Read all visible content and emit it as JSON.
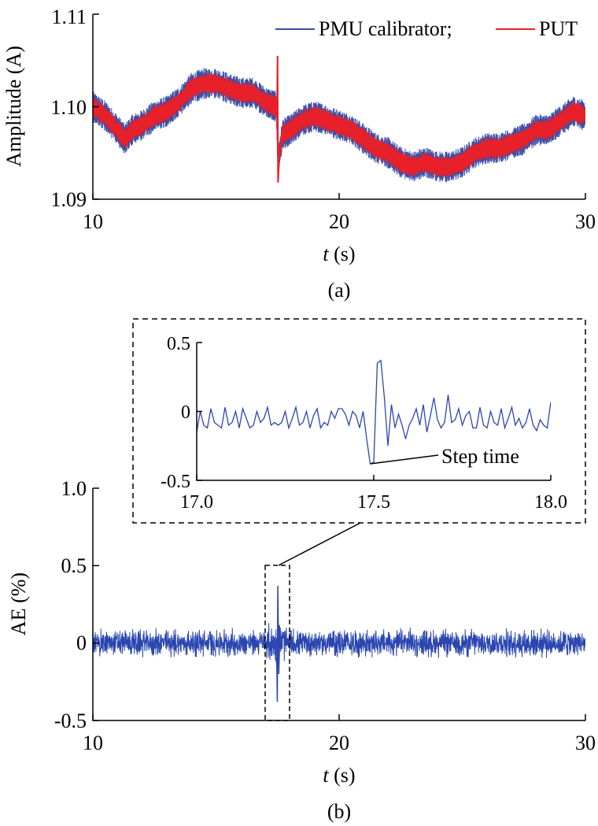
{
  "chart_data": [
    {
      "panel": "(a)",
      "type": "line",
      "xlabel_var": "t",
      "xlabel_unit": "(s)",
      "ylabel": "Amplitude (A)",
      "xlim": [
        10,
        30
      ],
      "ylim": [
        1.09,
        1.11
      ],
      "xticks": [
        "10",
        "20",
        "30"
      ],
      "yticks": [
        "1.09",
        "1.10",
        "1.11"
      ],
      "legend": {
        "placement": "top-right",
        "separator": ";"
      },
      "series": [
        {
          "name": "PMU calibrator",
          "color": "#3a4fa8",
          "band": 1.2,
          "x": [
            10.0,
            10.5,
            11.0,
            11.3,
            11.6,
            12.0,
            12.5,
            13.0,
            13.5,
            14.0,
            14.5,
            15.0,
            15.5,
            16.0,
            16.5,
            17.0,
            17.45,
            17.5,
            17.55,
            17.7,
            18.0,
            18.5,
            19.0,
            19.5,
            20.0,
            20.5,
            21.0,
            21.5,
            22.0,
            22.5,
            23.0,
            23.5,
            24.0,
            24.5,
            25.0,
            25.5,
            26.0,
            26.5,
            27.0,
            27.5,
            28.0,
            28.5,
            29.0,
            29.5,
            30.0
          ],
          "values": [
            1.1,
            1.099,
            1.0975,
            1.0965,
            1.0975,
            1.098,
            1.099,
            1.0995,
            1.1005,
            1.102,
            1.1025,
            1.1025,
            1.102,
            1.1015,
            1.1015,
            1.1005,
            1.1,
            1.0955,
            1.0945,
            1.097,
            1.0975,
            1.0985,
            1.099,
            1.0985,
            1.098,
            1.0975,
            1.0965,
            1.0955,
            1.095,
            1.094,
            1.0935,
            1.094,
            1.0935,
            1.0935,
            1.094,
            1.095,
            1.0955,
            1.0955,
            1.096,
            1.0965,
            1.0975,
            1.0975,
            1.0985,
            1.0995,
            1.099
          ]
        },
        {
          "name": "PUT",
          "color": "#e8202a",
          "band": 0.8,
          "x": [
            10.0,
            10.5,
            11.0,
            11.3,
            11.6,
            12.0,
            12.5,
            13.0,
            13.5,
            14.0,
            14.5,
            15.0,
            15.5,
            16.0,
            16.5,
            17.0,
            17.45,
            17.5,
            17.55,
            17.7,
            18.0,
            18.5,
            19.0,
            19.5,
            20.0,
            20.5,
            21.0,
            21.5,
            22.0,
            22.5,
            23.0,
            23.5,
            24.0,
            24.5,
            25.0,
            25.5,
            26.0,
            26.5,
            27.0,
            27.5,
            28.0,
            28.5,
            29.0,
            29.5,
            30.0
          ],
          "values": [
            1.1,
            1.099,
            1.0975,
            1.0965,
            1.0975,
            1.098,
            1.099,
            1.0995,
            1.1005,
            1.102,
            1.1025,
            1.1025,
            1.102,
            1.1015,
            1.1015,
            1.1005,
            1.1,
            1.0955,
            1.0945,
            1.097,
            1.0975,
            1.0985,
            1.099,
            1.0985,
            1.098,
            1.0975,
            1.0965,
            1.0955,
            1.095,
            1.094,
            1.0935,
            1.094,
            1.0935,
            1.0935,
            1.094,
            1.095,
            1.0955,
            1.0955,
            1.096,
            1.0965,
            1.0975,
            1.0975,
            1.0985,
            1.0995,
            1.099
          ]
        }
      ],
      "step": {
        "x": 17.5,
        "peak": 1.1055,
        "trough": 1.0918
      }
    },
    {
      "panel": "(b)",
      "type": "line",
      "xlabel_var": "t",
      "xlabel_unit": "(s)",
      "ylabel": "AE (%)",
      "xlim": [
        10,
        30
      ],
      "ylim": [
        -0.5,
        1.0
      ],
      "xticks": [
        "10",
        "20",
        "30"
      ],
      "yticks": [
        "-0.5",
        "0",
        "0.5",
        "1.0"
      ],
      "series": [
        {
          "color": "#2b46b0",
          "noise_amplitude": 0.08,
          "spike": {
            "x": 17.5,
            "max": 0.37,
            "min": -0.38
          }
        }
      ],
      "highlight_box": {
        "x": [
          17.2,
          18.2
        ],
        "y": [
          -0.5,
          0.5
        ]
      }
    },
    {
      "panel": "inset",
      "type": "line",
      "xlim": [
        17.0,
        18.0
      ],
      "ylim": [
        -0.5,
        0.5
      ],
      "xticks": [
        "17.0",
        "17.5",
        "18.0"
      ],
      "yticks": [
        "-0.5",
        "0",
        "0.5"
      ],
      "annotation": {
        "text": "Step time",
        "x": 17.49,
        "y": -0.38
      },
      "series": [
        {
          "color": "#2b46b0",
          "x": [
            17.0,
            17.01,
            17.02,
            17.03,
            17.04,
            17.05,
            17.06,
            17.07,
            17.08,
            17.09,
            17.1,
            17.11,
            17.12,
            17.13,
            17.14,
            17.15,
            17.16,
            17.17,
            17.18,
            17.19,
            17.2,
            17.21,
            17.22,
            17.23,
            17.24,
            17.25,
            17.26,
            17.27,
            17.28,
            17.29,
            17.3,
            17.31,
            17.32,
            17.33,
            17.34,
            17.35,
            17.36,
            17.37,
            17.38,
            17.39,
            17.4,
            17.41,
            17.42,
            17.43,
            17.44,
            17.45,
            17.46,
            17.47,
            17.48,
            17.49,
            17.5,
            17.51,
            17.52,
            17.53,
            17.54,
            17.55,
            17.56,
            17.57,
            17.58,
            17.59,
            17.6,
            17.61,
            17.62,
            17.63,
            17.64,
            17.65,
            17.66,
            17.67,
            17.68,
            17.69,
            17.7,
            17.71,
            17.72,
            17.73,
            17.74,
            17.75,
            17.76,
            17.77,
            17.78,
            17.79,
            17.8,
            17.81,
            17.82,
            17.83,
            17.84,
            17.85,
            17.86,
            17.87,
            17.88,
            17.89,
            17.9,
            17.91,
            17.92,
            17.93,
            17.94,
            17.95,
            17.96,
            17.97,
            17.98,
            17.99,
            18.0
          ],
          "values": [
            -0.15,
            0.0,
            -0.1,
            -0.12,
            0.02,
            -0.08,
            -0.1,
            -0.12,
            0.03,
            -0.1,
            -0.08,
            0.0,
            -0.12,
            0.02,
            -0.05,
            -0.12,
            -0.1,
            0.0,
            -0.08,
            -0.05,
            0.03,
            -0.1,
            -0.08,
            -0.1,
            -0.08,
            0.0,
            -0.12,
            -0.05,
            0.03,
            -0.1,
            -0.08,
            0.0,
            -0.12,
            -0.03,
            0.02,
            -0.12,
            -0.08,
            -0.1,
            0.0,
            -0.05,
            0.02,
            0.02,
            -0.02,
            -0.1,
            0.0,
            -0.03,
            -0.12,
            0.0,
            -0.2,
            -0.38,
            -0.37,
            0.35,
            0.37,
            0.1,
            -0.25,
            0.05,
            -0.12,
            -0.02,
            -0.1,
            -0.2,
            -0.1,
            -0.05,
            0.02,
            -0.1,
            0.05,
            -0.15,
            -0.03,
            0.1,
            -0.06,
            -0.12,
            -0.08,
            0.12,
            -0.08,
            -0.06,
            0.02,
            -0.1,
            -0.03,
            0.0,
            -0.12,
            -0.12,
            0.03,
            -0.1,
            -0.12,
            0.0,
            -0.08,
            -0.1,
            0.02,
            -0.12,
            -0.05,
            0.03,
            -0.1,
            -0.05,
            -0.12,
            -0.08,
            0.02,
            -0.1,
            -0.14,
            -0.06,
            -0.1,
            -0.12,
            0.07
          ]
        }
      ]
    }
  ],
  "captions": {
    "a": "(a)",
    "b": "(b)"
  }
}
